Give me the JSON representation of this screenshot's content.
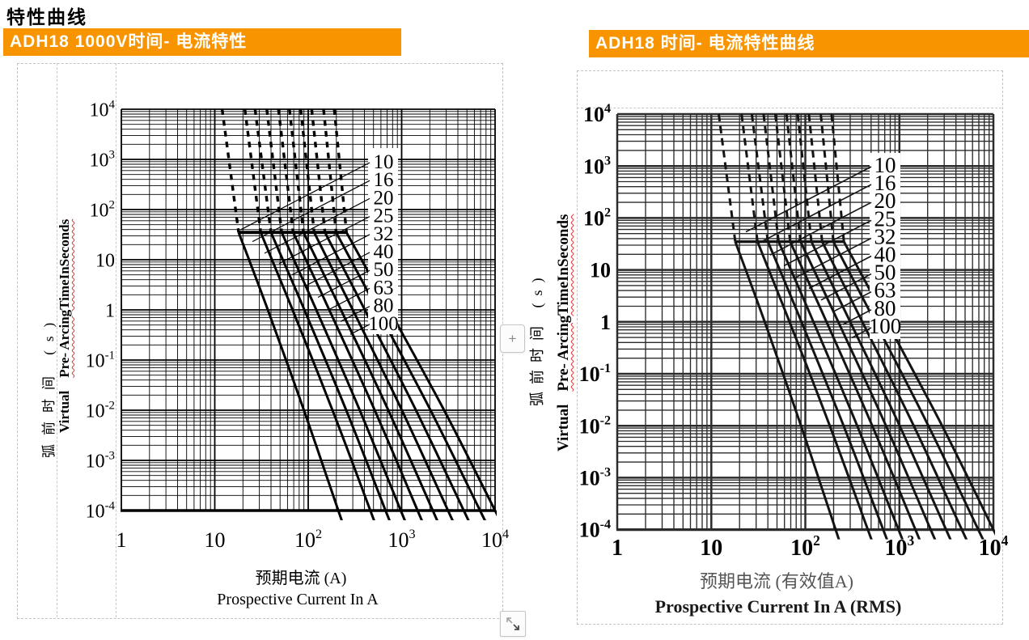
{
  "page": {
    "heading": "特性曲线",
    "plus_button_label": "+",
    "accent_color": "#F79400"
  },
  "chart_data": [
    {
      "type": "line",
      "title": "ADH18 1000V时间- 电流特性",
      "x_axis": {
        "label_cn": "预期电流 (A)",
        "label_en": "Prospective Current In A",
        "scale": "log",
        "range": [
          1,
          10000
        ],
        "ticks": [
          "1",
          "10",
          "10^2",
          "10^3",
          "10^4"
        ]
      },
      "y_axis": {
        "label_cn": "弧前时间 (s)",
        "label_en_normal": "Virtual",
        "label_en_underlined": "Pre-  ArcingTimeInSeconds",
        "scale": "log",
        "range": [
          0.0001,
          10000
        ],
        "ticks": [
          "10^4",
          "10^3",
          "10^2",
          "10",
          "1",
          "10^-1",
          "10^-2",
          "10^-3",
          "10^-4"
        ]
      },
      "grid": "log-log major and minor, both axes",
      "legend_position": "right-inside",
      "dash_above_time_s": 35,
      "cap_line": {
        "time_s": 35,
        "current_range_a": [
          18,
          257
        ]
      },
      "series": [
        {
          "name": "10",
          "rating_a": 10,
          "points": [
            [
              12,
              10000
            ],
            [
              18,
              35
            ],
            [
              37,
              1
            ],
            [
              90,
              0.01
            ],
            [
              210,
              0.0001
            ]
          ]
        },
        {
          "name": "16",
          "rating_a": 16,
          "points": [
            [
              21,
              10000
            ],
            [
              31,
              35
            ],
            [
              68,
              1
            ],
            [
              182,
              0.01
            ],
            [
              462,
              0.0001
            ]
          ]
        },
        {
          "name": "20",
          "rating_a": 20,
          "points": [
            [
              27,
              10000
            ],
            [
              40,
              35
            ],
            [
              91,
              1
            ],
            [
              255,
              0.01
            ],
            [
              673,
              0.0001
            ]
          ]
        },
        {
          "name": "25",
          "rating_a": 25,
          "points": [
            [
              36,
              10000
            ],
            [
              52,
              35
            ],
            [
              122,
              1
            ],
            [
              356,
              0.01
            ],
            [
              979,
              0.0001
            ]
          ]
        },
        {
          "name": "32",
          "rating_a": 32,
          "points": [
            [
              48,
              10000
            ],
            [
              69,
              35
            ],
            [
              168,
              1
            ],
            [
              515,
              0.01
            ],
            [
              1481,
              0.0001
            ]
          ]
        },
        {
          "name": "40",
          "rating_a": 40,
          "points": [
            [
              63,
              10000
            ],
            [
              89,
              35
            ],
            [
              224,
              1
            ],
            [
              720,
              0.01
            ],
            [
              2155,
              0.0001
            ]
          ]
        },
        {
          "name": "50",
          "rating_a": 50,
          "points": [
            [
              83,
              10000
            ],
            [
              116,
              35
            ],
            [
              300,
              1
            ],
            [
              1006,
              0.01
            ],
            [
              3137,
              0.0001
            ]
          ]
        },
        {
          "name": "63",
          "rating_a": 63,
          "points": [
            [
              109,
              10000
            ],
            [
              151,
              35
            ],
            [
              404,
              1
            ],
            [
              1422,
              0.01
            ],
            [
              4619,
              0.0001
            ]
          ]
        },
        {
          "name": "80",
          "rating_a": 80,
          "points": [
            [
              146,
              10000
            ],
            [
              199,
              35
            ],
            [
              552,
              1
            ],
            [
              2036,
              0.01
            ],
            [
              6905,
              0.0001
            ]
          ]
        },
        {
          "name": "100",
          "rating_a": 100,
          "points": [
            [
              190,
              10000
            ],
            [
              257,
              35
            ],
            [
              738,
              1
            ],
            [
              2846,
              0.01
            ],
            [
              10000,
              0.0001
            ]
          ]
        }
      ]
    },
    {
      "type": "line",
      "title": "ADH18  时间- 电流特性曲线",
      "x_axis": {
        "label_cn": "预期电流 (有效值A)",
        "label_en": "Prospective Current In A (RMS)",
        "scale": "log",
        "range": [
          1,
          10000
        ],
        "ticks": [
          "1",
          "10",
          "10^2",
          "10^3",
          "10^4"
        ]
      },
      "y_axis": {
        "label_cn": "弧前时间 (s)",
        "label_en_normal": "Virtual",
        "label_en_underlined": "Pre-  ArcingTimeInSeconds",
        "scale": "log",
        "range": [
          0.0001,
          10000
        ],
        "ticks": [
          "10^4",
          "10^3",
          "10^2",
          "10",
          "1",
          "10^-1",
          "10^-2",
          "10^-3",
          "10^-4"
        ]
      },
      "grid": "log-log major and minor, both axes",
      "legend_position": "right-inside",
      "dash_above_time_s": 35,
      "cap_line": {
        "time_s": 35,
        "current_range_a": [
          18,
          257
        ]
      },
      "series": [
        {
          "name": "10",
          "rating_a": 10,
          "points": [
            [
              12,
              10000
            ],
            [
              18,
              35
            ],
            [
              37,
              1
            ],
            [
              90,
              0.01
            ],
            [
              210,
              0.0001
            ]
          ]
        },
        {
          "name": "16",
          "rating_a": 16,
          "points": [
            [
              21,
              10000
            ],
            [
              31,
              35
            ],
            [
              68,
              1
            ],
            [
              182,
              0.01
            ],
            [
              462,
              0.0001
            ]
          ]
        },
        {
          "name": "20",
          "rating_a": 20,
          "points": [
            [
              27,
              10000
            ],
            [
              40,
              35
            ],
            [
              91,
              1
            ],
            [
              255,
              0.01
            ],
            [
              673,
              0.0001
            ]
          ]
        },
        {
          "name": "25",
          "rating_a": 25,
          "points": [
            [
              36,
              10000
            ],
            [
              52,
              35
            ],
            [
              122,
              1
            ],
            [
              356,
              0.01
            ],
            [
              979,
              0.0001
            ]
          ]
        },
        {
          "name": "32",
          "rating_a": 32,
          "points": [
            [
              48,
              10000
            ],
            [
              69,
              35
            ],
            [
              168,
              1
            ],
            [
              515,
              0.01
            ],
            [
              1481,
              0.0001
            ]
          ]
        },
        {
          "name": "40",
          "rating_a": 40,
          "points": [
            [
              63,
              10000
            ],
            [
              89,
              35
            ],
            [
              224,
              1
            ],
            [
              720,
              0.01
            ],
            [
              2155,
              0.0001
            ]
          ]
        },
        {
          "name": "50",
          "rating_a": 50,
          "points": [
            [
              83,
              10000
            ],
            [
              116,
              35
            ],
            [
              300,
              1
            ],
            [
              1006,
              0.01
            ],
            [
              3137,
              0.0001
            ]
          ]
        },
        {
          "name": "63",
          "rating_a": 63,
          "points": [
            [
              109,
              10000
            ],
            [
              151,
              35
            ],
            [
              404,
              1
            ],
            [
              1422,
              0.01
            ],
            [
              4619,
              0.0001
            ]
          ]
        },
        {
          "name": "80",
          "rating_a": 80,
          "points": [
            [
              146,
              10000
            ],
            [
              199,
              35
            ],
            [
              552,
              1
            ],
            [
              2036,
              0.01
            ],
            [
              6905,
              0.0001
            ]
          ]
        },
        {
          "name": "100",
          "rating_a": 100,
          "points": [
            [
              190,
              10000
            ],
            [
              257,
              35
            ],
            [
              738,
              1
            ],
            [
              2846,
              0.01
            ],
            [
              10000,
              0.0001
            ]
          ]
        }
      ]
    }
  ]
}
